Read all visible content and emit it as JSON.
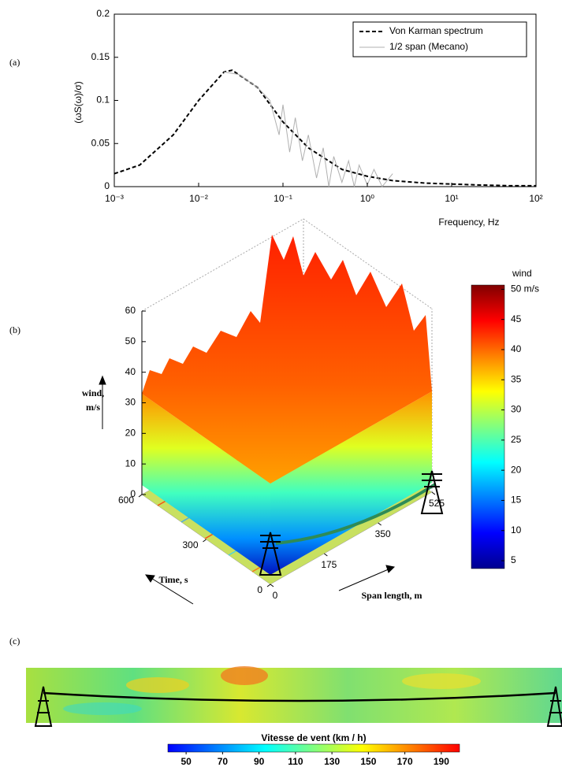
{
  "panel_labels": [
    "(a)",
    "(b)",
    "(c)"
  ],
  "chart_data": [
    {
      "type": "line",
      "xlabel": "Frequency, Hz",
      "ylabel": "(ωS(ω)/σ)",
      "xscale": "log",
      "xlim": [
        0.001,
        100
      ],
      "xticks": [
        {
          "value": 0.001,
          "label": "10⁻³"
        },
        {
          "value": 0.01,
          "label": "10⁻²"
        },
        {
          "value": 0.1,
          "label": "10⁻¹"
        },
        {
          "value": 1,
          "label": "10⁰"
        },
        {
          "value": 10,
          "label": "10¹"
        },
        {
          "value": 100,
          "label": "10²"
        }
      ],
      "ylim": [
        0,
        0.2
      ],
      "yticks": [
        0,
        0.05,
        0.1,
        0.15,
        0.2
      ],
      "legend": "upper right",
      "series": [
        {
          "name": "Von Karman spectrum",
          "color": "#000000",
          "dash": true,
          "x": [
            0.001,
            0.002,
            0.005,
            0.01,
            0.02,
            0.025,
            0.05,
            0.1,
            0.2,
            0.5,
            1,
            2,
            5,
            10,
            20,
            50,
            100
          ],
          "values": [
            0.015,
            0.025,
            0.06,
            0.1,
            0.133,
            0.135,
            0.115,
            0.075,
            0.045,
            0.02,
            0.012,
            0.007,
            0.004,
            0.003,
            0.002,
            0.001,
            0.001
          ]
        },
        {
          "name": "1/2 span (Mecano)",
          "color": "#b0b0b0",
          "dash": false,
          "x": [
            0.02,
            0.03,
            0.05,
            0.07,
            0.09,
            0.1,
            0.12,
            0.14,
            0.17,
            0.2,
            0.25,
            0.3,
            0.35,
            0.4,
            0.5,
            0.6,
            0.7,
            0.8,
            1,
            1.2,
            1.5,
            2
          ],
          "values": [
            0.133,
            0.13,
            0.115,
            0.1,
            0.06,
            0.095,
            0.04,
            0.08,
            0.03,
            0.06,
            0.01,
            0.045,
            0.0,
            0.035,
            0.005,
            0.03,
            0.0,
            0.025,
            0.002,
            0.02,
            0.0,
            0.015
          ]
        }
      ]
    },
    {
      "type": "surface3d",
      "zlabel": [
        "wind,",
        "m/s"
      ],
      "zlim": [
        0,
        60
      ],
      "zticks": [
        0,
        10,
        20,
        30,
        40,
        50,
        60
      ],
      "time_label": "Time, s",
      "time_lim": [
        0,
        600
      ],
      "time_ticks": [
        0,
        300,
        600
      ],
      "span_label": "Span length, m",
      "span_lim": [
        0,
        525
      ],
      "span_ticks": [
        0,
        175,
        350,
        525
      ],
      "colormap": [
        "#00008f",
        "#0000ff",
        "#0080ff",
        "#00ffff",
        "#80ff80",
        "#ffff00",
        "#ff8000",
        "#ff0000",
        "#800000"
      ],
      "colorbar": {
        "title": "wind",
        "clim": [
          3.7,
          50.7
        ],
        "ticks": [
          5,
          10,
          15,
          20,
          25,
          30,
          35,
          40,
          45,
          {
            "value": 50,
            "label": "50 m/s"
          }
        ]
      }
    },
    {
      "type": "heatmap",
      "colormap": [
        "#0000ff",
        "#0080ff",
        "#00ffff",
        "#80ff80",
        "#ffff00",
        "#ff8000",
        "#ff0000"
      ],
      "colorbar": {
        "title": "Vitesse de vent (km / h)",
        "clim": [
          40,
          200
        ],
        "ticks": [
          50,
          70,
          90,
          110,
          130,
          150,
          170,
          190
        ]
      }
    }
  ]
}
